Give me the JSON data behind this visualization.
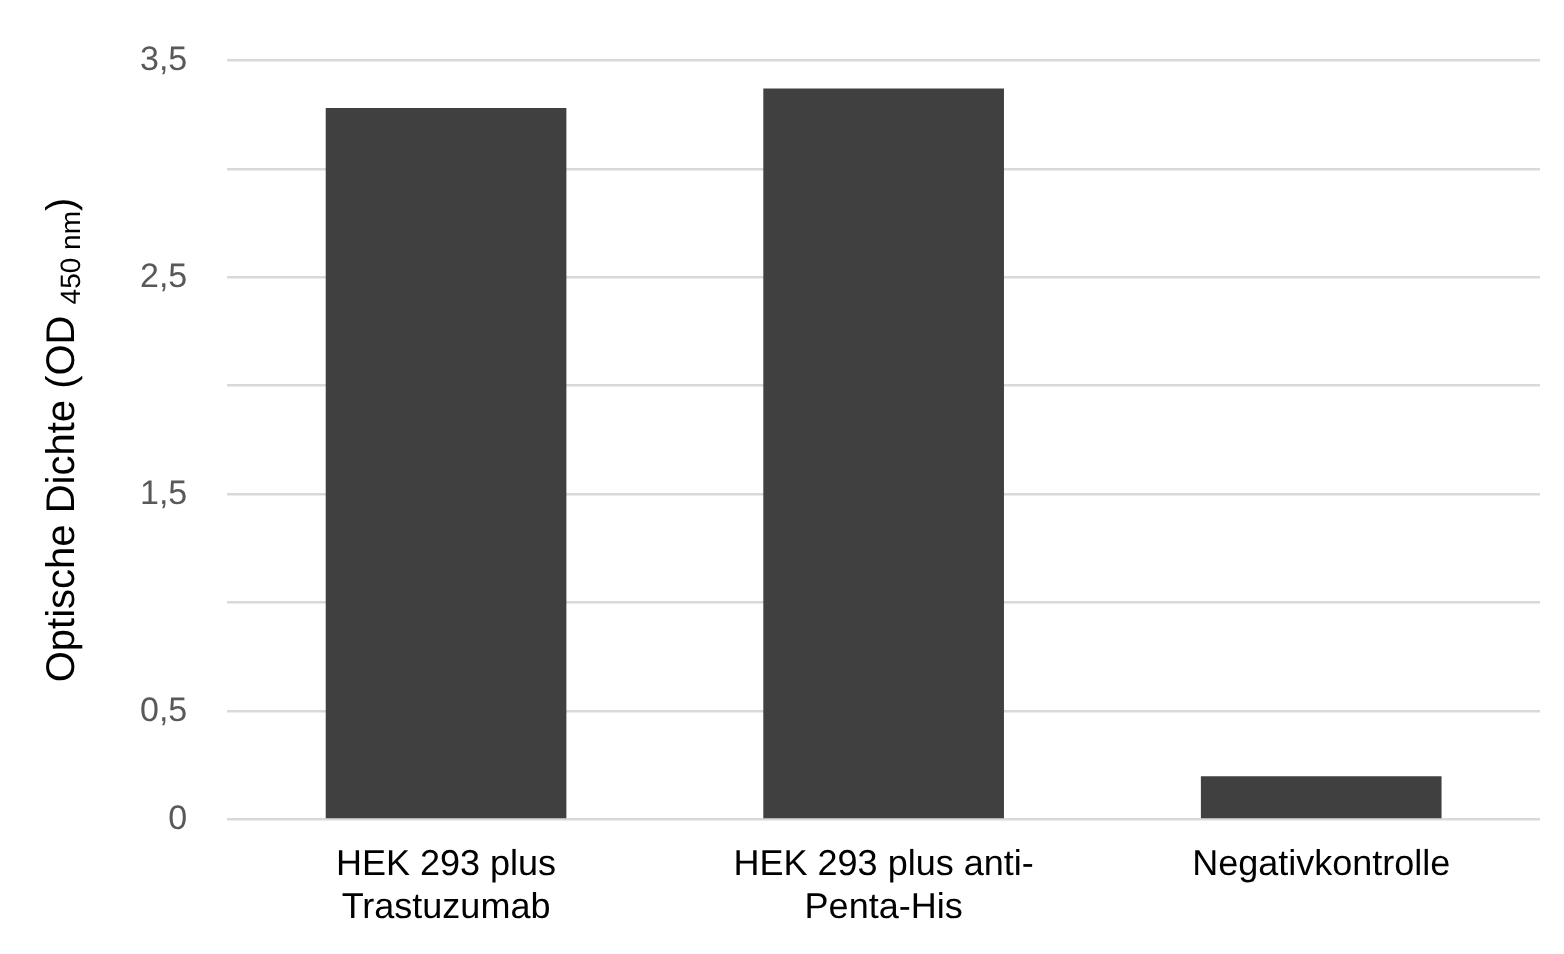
{
  "chart_data": {
    "type": "bar",
    "ylabel": "Optische Dichte (OD $_{450 nm}$)",
    "categories": [
      "HEK 293 plus Trastuzumab",
      "HEK 293 plus anti-Penta-His",
      "Negativkontrolle"
    ],
    "values": [
      3.28,
      3.37,
      0.2
    ],
    "color": "#404040",
    "ylim": [
      0,
      3.5
    ],
    "yticks": [
      {
        "value": 0,
        "label": "0"
      },
      {
        "value": 0.5,
        "label": "0,5"
      },
      {
        "value": 1,
        "label": null
      },
      {
        "value": 1.5,
        "label": "1,5"
      },
      {
        "value": 2,
        "label": null
      },
      {
        "value": 2.5,
        "label": "2,5"
      },
      {
        "value": 3,
        "label": null
      },
      {
        "value": 3.5,
        "label": "3,5"
      }
    ],
    "grid": "y",
    "legend": false
  }
}
